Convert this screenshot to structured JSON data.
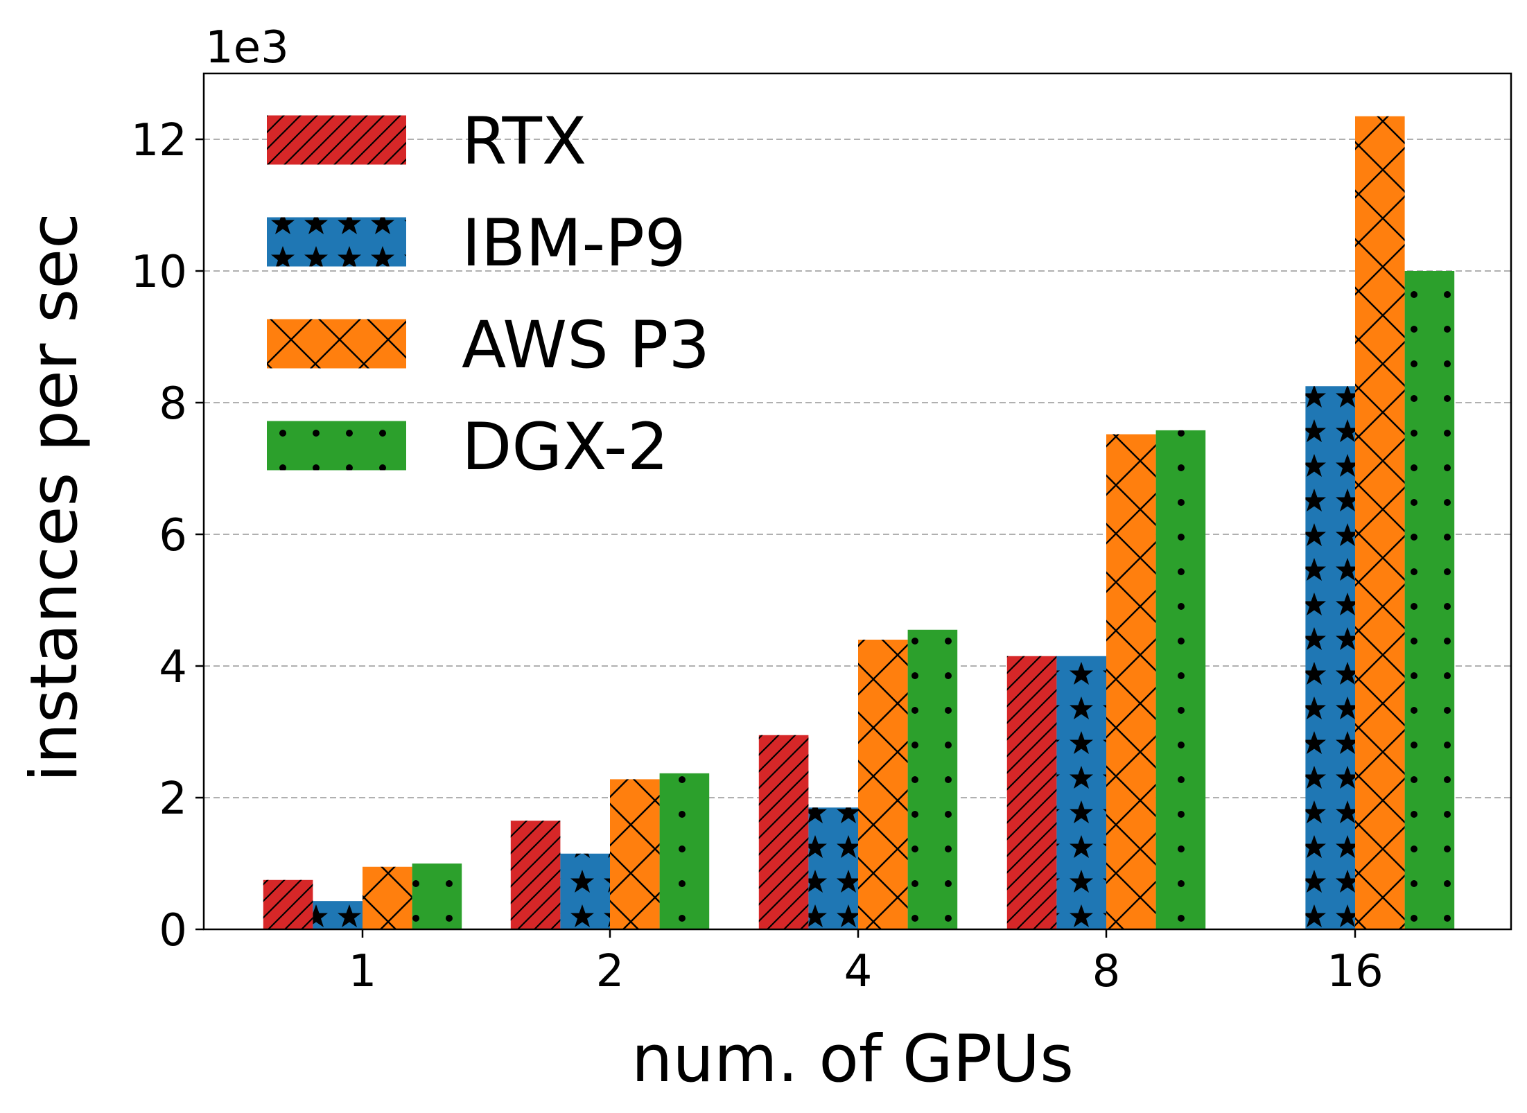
{
  "chart_data": {
    "type": "bar",
    "xlabel": "num. of GPUs",
    "ylabel": "instances per sec",
    "y_multiplier_label": "1e3",
    "categories": [
      "1",
      "2",
      "4",
      "8",
      "16"
    ],
    "ylim": [
      0,
      13
    ],
    "yticks": [
      0,
      2,
      4,
      6,
      8,
      10,
      12
    ],
    "grid": "y, dashed",
    "legend_position": "upper-left",
    "series": [
      {
        "name": "RTX",
        "color": "#d62728",
        "hatch": "diagonal",
        "values": [
          0.75,
          1.65,
          2.95,
          4.15,
          null
        ]
      },
      {
        "name": "IBM-P9",
        "color": "#1f77b4",
        "hatch": "stars",
        "values": [
          0.43,
          1.15,
          1.85,
          4.15,
          8.25
        ]
      },
      {
        "name": "AWS P3",
        "color": "#ff7f0e",
        "hatch": "crosshatch",
        "values": [
          0.95,
          2.28,
          4.4,
          7.52,
          12.35
        ]
      },
      {
        "name": "DGX-2",
        "color": "#2ca02c",
        "hatch": "dots",
        "values": [
          1.0,
          2.37,
          4.55,
          7.58,
          10.0
        ]
      }
    ]
  }
}
